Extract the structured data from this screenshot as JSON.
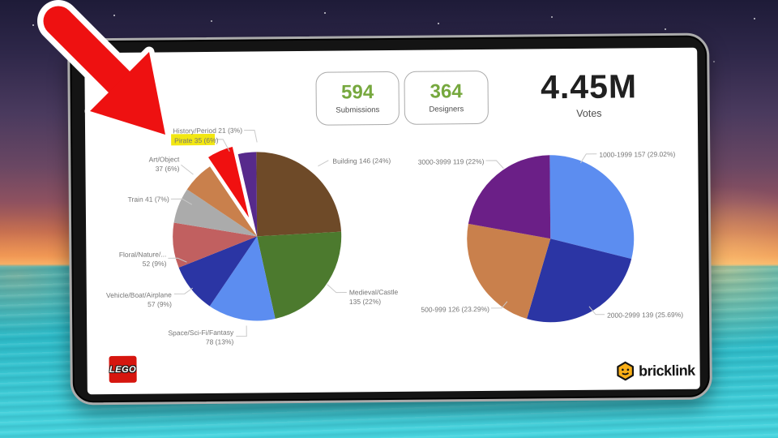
{
  "stats": {
    "submissions": {
      "value": "594",
      "label": "Submissions"
    },
    "designers": {
      "value": "364",
      "label": "Designers"
    },
    "votes": {
      "value": "4.45M",
      "label": "Votes"
    }
  },
  "branding": {
    "lego": "LEGO",
    "bricklink": "bricklink"
  },
  "colors": {
    "stat_green": "#76a83e",
    "highlight_yellow": "#f2e712",
    "arrow_red": "#ee1111",
    "label_gray": "#767676",
    "leader_gray": "#c9c9c9"
  },
  "chart_data": [
    {
      "type": "pie",
      "position": "left",
      "slices": [
        {
          "label": "Building",
          "value": 146,
          "pct": "24%",
          "display": [
            "Building 146 (24%)"
          ],
          "color": "#6e4a28"
        },
        {
          "label": "Medieval/Castle",
          "value": 135,
          "pct": "22%",
          "display": [
            "Medieval/Castle",
            "135 (22%)"
          ],
          "color": "#4c7a2e"
        },
        {
          "label": "Space/Sci-Fi/Fantasy",
          "value": 78,
          "pct": "13%",
          "display": [
            "Space/Sci-Fi/Fantasy",
            "78 (13%)"
          ],
          "color": "#5c8df0"
        },
        {
          "label": "Vehicle/Boat/Airplane",
          "value": 57,
          "pct": "9%",
          "display": [
            "Vehicle/Boat/Airplane",
            "57 (9%)"
          ],
          "color": "#2b35a4"
        },
        {
          "label": "Floral/Nature/...",
          "value": 52,
          "pct": "9%",
          "display": [
            "Floral/Nature/...",
            "52 (9%)"
          ],
          "color": "#c16060"
        },
        {
          "label": "Train",
          "value": 41,
          "pct": "7%",
          "display": [
            "Train 41 (7%)"
          ],
          "color": "#ababab"
        },
        {
          "label": "Art/Object",
          "value": 37,
          "pct": "6%",
          "display": [
            "Art/Object",
            "37 (6%)"
          ],
          "color": "#c9804c"
        },
        {
          "label": "Pirate",
          "value": 35,
          "pct": "6%",
          "display": [
            "Pirate 35 (6%)"
          ],
          "color": "#f01010",
          "exploded": true,
          "highlighted": true
        },
        {
          "label": "History/Period",
          "value": 21,
          "pct": "3%",
          "display": [
            "History/Period 21 (3%)"
          ],
          "color": "#572a8c"
        }
      ]
    },
    {
      "type": "pie",
      "position": "right",
      "slices": [
        {
          "label": "1000-1999",
          "value": 157,
          "pct": "29.02%",
          "display": [
            "1000-1999 157 (29.02%)"
          ],
          "color": "#5c8df0"
        },
        {
          "label": "2000-2999",
          "value": 139,
          "pct": "25.69%",
          "display": [
            "2000-2999 139 (25.69%)"
          ],
          "color": "#2b35a4"
        },
        {
          "label": "500-999",
          "value": 126,
          "pct": "23.29%",
          "display": [
            "500-999 126 (23.29%)"
          ],
          "color": "#c9804c"
        },
        {
          "label": "3000-3999",
          "value": 119,
          "pct": "22%",
          "display": [
            "3000-3999 119 (22%)"
          ],
          "color": "#6b1f87"
        }
      ]
    }
  ]
}
